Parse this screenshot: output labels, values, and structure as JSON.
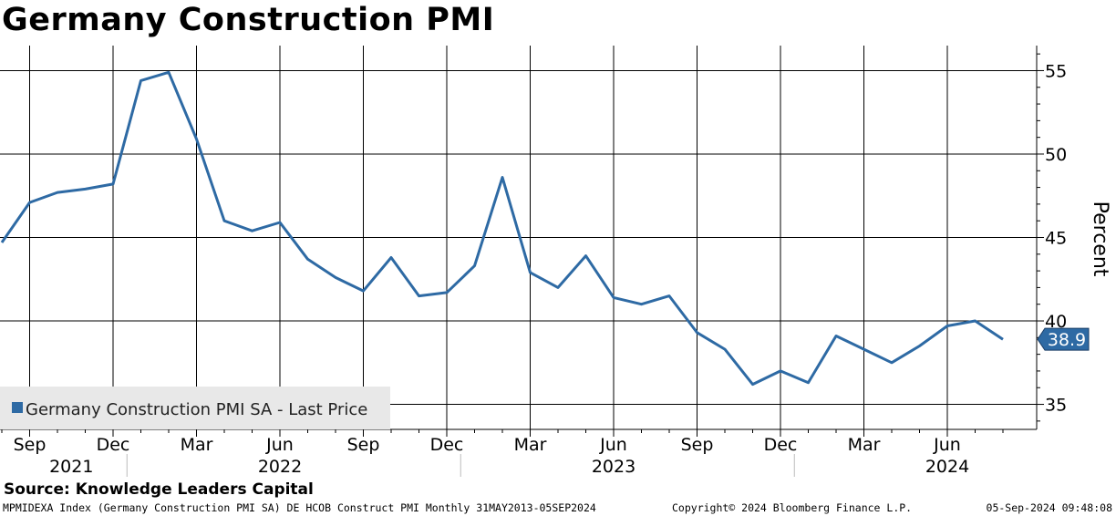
{
  "chart_data": {
    "type": "line",
    "title": "Germany Construction PMI",
    "ylabel": "Percent",
    "xlabel": "",
    "ylim": [
      33.5,
      56.5
    ],
    "yticks": [
      35,
      40,
      45,
      50,
      55
    ],
    "grid": true,
    "legend_position": "bottom-left",
    "x_months": [
      "Aug 2021",
      "Sep 2021",
      "Oct 2021",
      "Nov 2021",
      "Dec 2021",
      "Jan 2022",
      "Feb 2022",
      "Mar 2022",
      "Apr 2022",
      "May 2022",
      "Jun 2022",
      "Jul 2022",
      "Aug 2022",
      "Sep 2022",
      "Oct 2022",
      "Nov 2022",
      "Dec 2022",
      "Jan 2023",
      "Feb 2023",
      "Mar 2023",
      "Apr 2023",
      "May 2023",
      "Jun 2023",
      "Jul 2023",
      "Aug 2023",
      "Sep 2023",
      "Oct 2023",
      "Nov 2023",
      "Dec 2023",
      "Jan 2024",
      "Feb 2024",
      "Mar 2024",
      "Apr 2024",
      "May 2024",
      "Jun 2024",
      "Jul 2024",
      "Aug 2024"
    ],
    "series": [
      {
        "name": "Germany Construction PMI SA - Last Price",
        "color": "#2e6aa4",
        "values": [
          44.7,
          47.1,
          47.7,
          47.9,
          48.2,
          54.4,
          54.9,
          50.9,
          46.0,
          45.4,
          45.9,
          43.7,
          42.6,
          41.8,
          43.8,
          41.5,
          41.7,
          43.3,
          48.6,
          42.9,
          42.0,
          43.9,
          41.4,
          41.0,
          41.5,
          39.3,
          38.3,
          36.2,
          37.0,
          36.3,
          39.1,
          38.3,
          37.5,
          38.5,
          39.7,
          40.0,
          38.9
        ]
      }
    ],
    "x_tick_labels": [
      "Sep",
      "Dec",
      "Mar",
      "Jun",
      "Sep",
      "Dec",
      "Mar",
      "Jun",
      "Sep",
      "Dec",
      "Mar",
      "Jun"
    ],
    "x_tick_month_index": [
      1,
      4,
      7,
      10,
      13,
      16,
      19,
      22,
      25,
      28,
      31,
      34
    ],
    "year_labels": [
      {
        "label": "2021",
        "center_index": 2.5
      },
      {
        "label": "2022",
        "center_index": 10.0
      },
      {
        "label": "2023",
        "center_index": 22.0
      },
      {
        "label": "2024",
        "center_index": 34.0
      }
    ],
    "year_separator_index": [
      4.5,
      16.5,
      28.5
    ],
    "last_value_label": "38.9"
  },
  "source": "Source: Knowledge Leaders Capital",
  "footer": {
    "left": "MPMIDEXA Index (Germany Construction PMI SA) DE HCOB Construct PMI  Monthly 31MAY2013-05SEP2024",
    "middle": "Copyright© 2024 Bloomberg Finance L.P.",
    "right": "05-Sep-2024 09:48:08"
  }
}
